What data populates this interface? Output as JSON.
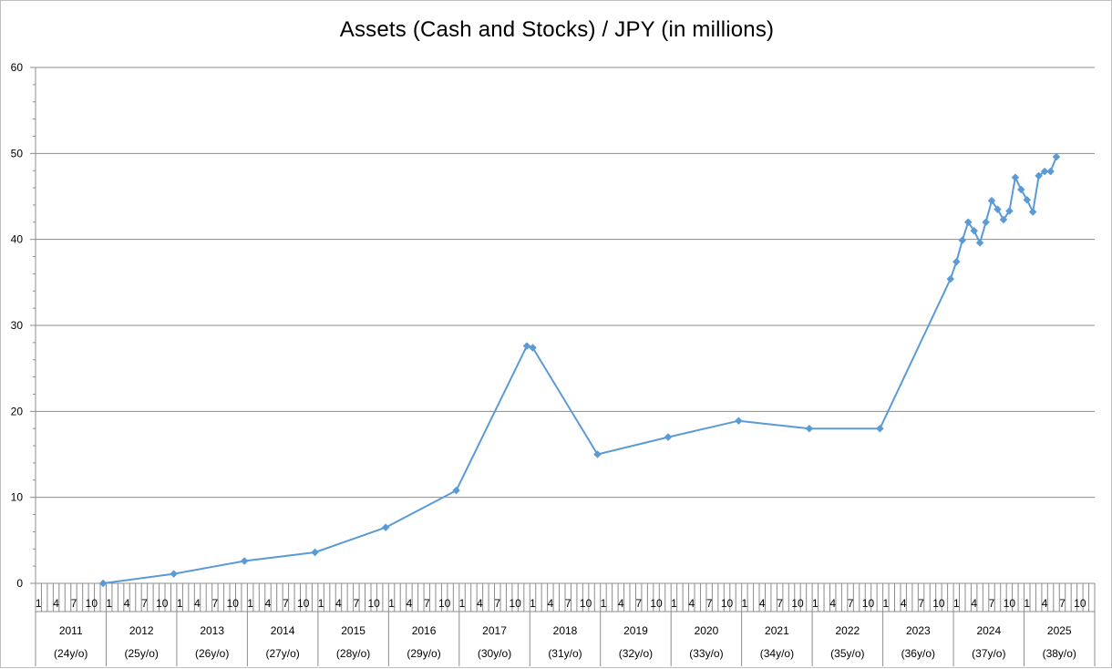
{
  "chart_data": {
    "type": "line",
    "title": "Assets (Cash and Stocks) / JPY (in millions)",
    "ylim": [
      0,
      60
    ],
    "yticks": [
      0,
      10,
      20,
      30,
      40,
      50,
      60
    ],
    "grid": true,
    "legend": "none",
    "line_color": "#5b9bd5",
    "marker": "diamond",
    "xlim": [
      "2011-01",
      "2025-12"
    ],
    "month_tick_labels": [
      "1",
      "4",
      "7",
      "10"
    ],
    "years": [
      {
        "year": "2011",
        "age": "(24y/o)"
      },
      {
        "year": "2012",
        "age": "(25y/o)"
      },
      {
        "year": "2013",
        "age": "(26y/o)"
      },
      {
        "year": "2014",
        "age": "(27y/o)"
      },
      {
        "year": "2015",
        "age": "(28y/o)"
      },
      {
        "year": "2016",
        "age": "(29y/o)"
      },
      {
        "year": "2017",
        "age": "(30y/o)"
      },
      {
        "year": "2018",
        "age": "(31y/o)"
      },
      {
        "year": "2019",
        "age": "(32y/o)"
      },
      {
        "year": "2020",
        "age": "(33y/o)"
      },
      {
        "year": "2021",
        "age": "(34y/o)"
      },
      {
        "year": "2022",
        "age": "(35y/o)"
      },
      {
        "year": "2023",
        "age": "(36y/o)"
      },
      {
        "year": "2024",
        "age": "(37y/o)"
      },
      {
        "year": "2025",
        "age": "(38y/o)"
      }
    ],
    "series": [
      {
        "points": [
          {
            "x": "2011-12",
            "y": 0
          },
          {
            "x": "2012-12",
            "y": 1.1
          },
          {
            "x": "2013-12",
            "y": 2.6
          },
          {
            "x": "2014-12",
            "y": 3.6
          },
          {
            "x": "2015-12",
            "y": 6.5
          },
          {
            "x": "2016-12",
            "y": 10.8
          },
          {
            "x": "2017-12",
            "y": 27.6
          },
          {
            "x": "2018-01",
            "y": 27.4
          },
          {
            "x": "2018-12",
            "y": 15.0
          },
          {
            "x": "2019-12",
            "y": 17.0
          },
          {
            "x": "2020-12",
            "y": 18.9
          },
          {
            "x": "2021-12",
            "y": 18.0
          },
          {
            "x": "2022-12",
            "y": 18.0
          },
          {
            "x": "2023-12",
            "y": 35.4
          },
          {
            "x": "2024-01",
            "y": 37.4
          },
          {
            "x": "2024-02",
            "y": 39.9
          },
          {
            "x": "2024-03",
            "y": 42.0
          },
          {
            "x": "2024-04",
            "y": 41.0
          },
          {
            "x": "2024-05",
            "y": 39.6
          },
          {
            "x": "2024-06",
            "y": 42.0
          },
          {
            "x": "2024-07",
            "y": 44.5
          },
          {
            "x": "2024-08",
            "y": 43.5
          },
          {
            "x": "2024-09",
            "y": 42.3
          },
          {
            "x": "2024-10",
            "y": 43.3
          },
          {
            "x": "2024-11",
            "y": 47.2
          },
          {
            "x": "2024-12",
            "y": 45.8
          },
          {
            "x": "2025-01",
            "y": 44.6
          },
          {
            "x": "2025-02",
            "y": 43.2
          },
          {
            "x": "2025-03",
            "y": 47.4
          },
          {
            "x": "2025-04",
            "y": 47.9
          },
          {
            "x": "2025-05",
            "y": 47.9
          },
          {
            "x": "2025-06",
            "y": 49.6
          }
        ]
      }
    ]
  }
}
